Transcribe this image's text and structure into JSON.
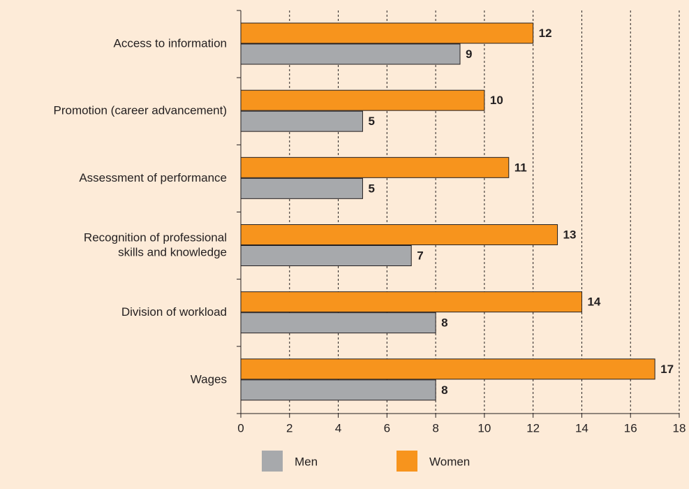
{
  "chart_data": {
    "type": "hbar",
    "categories": [
      "Access to information",
      "Promotion (career advancement)",
      "Assessment of performance",
      "Recognition of professional\nskills and knowledge",
      "Division of workload",
      "Wages"
    ],
    "series": [
      {
        "name": "Men",
        "color": "#a7a9ac",
        "values": [
          9,
          5,
          5,
          7,
          8,
          8
        ]
      },
      {
        "name": "Women",
        "color": "#f7941d",
        "values": [
          12,
          10,
          11,
          13,
          14,
          17
        ]
      }
    ],
    "xlim": [
      0,
      18
    ],
    "xticks": [
      0,
      2,
      4,
      6,
      8,
      10,
      12,
      14,
      16,
      18
    ],
    "grid": true,
    "legend": "bottom"
  }
}
